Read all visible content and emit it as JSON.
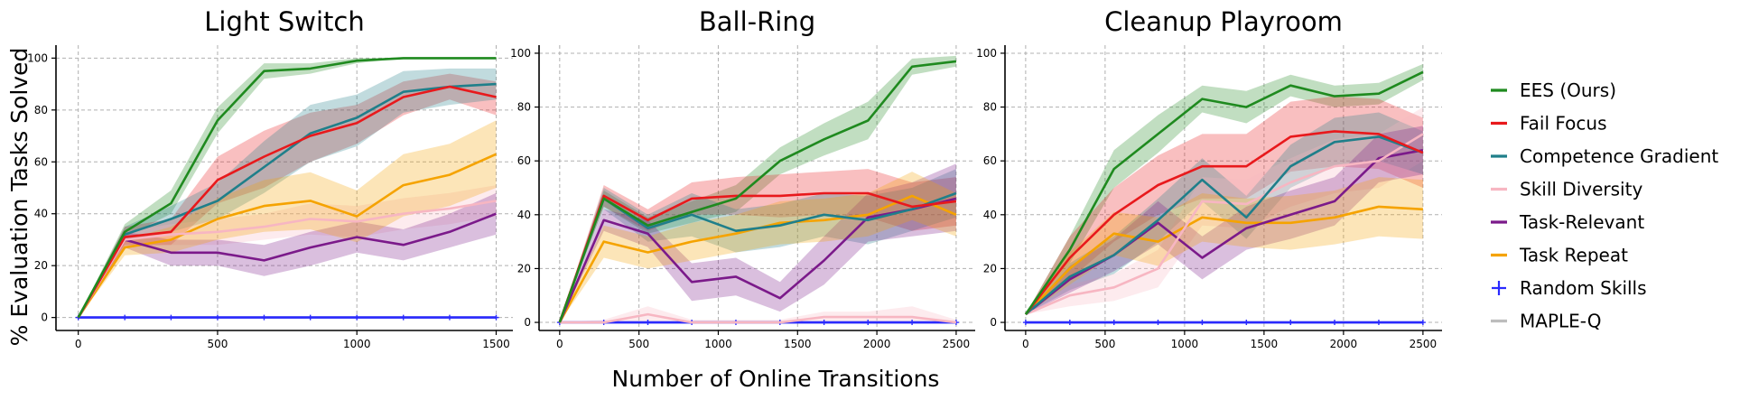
{
  "figure": {
    "ylabel": "% Evaluation Tasks Solved",
    "xlabel": "Number of Online Transitions"
  },
  "legend": [
    {
      "name": "EES (Ours)",
      "color": "#1f8a1f",
      "marker": "line"
    },
    {
      "name": "Fail Focus",
      "color": "#e8191c",
      "marker": "line"
    },
    {
      "name": "Competence Gradient",
      "color": "#1f7f8a",
      "marker": "line"
    },
    {
      "name": "Skill Diversity",
      "color": "#f7b6c2",
      "marker": "line"
    },
    {
      "name": "Task-Relevant",
      "color": "#7b1a8a",
      "marker": "line"
    },
    {
      "name": "Task Repeat",
      "color": "#f5a300",
      "marker": "line"
    },
    {
      "name": "Random Skills",
      "color": "#2a2aff",
      "marker": "plus"
    },
    {
      "name": "MAPLE-Q",
      "color": "#bdbdbd",
      "marker": "line"
    }
  ],
  "chart_data": [
    {
      "type": "line",
      "title": "Light Switch",
      "xlim": [
        -80,
        1560
      ],
      "ylim": [
        -5,
        105
      ],
      "xticks": [
        0,
        500,
        1000,
        1500
      ],
      "yticks": [
        0,
        20,
        40,
        60,
        80,
        100
      ],
      "grid": true,
      "series": [
        {
          "name": "EES (Ours)",
          "x": [
            0,
            167,
            333,
            500,
            667,
            833,
            1000,
            1167,
            1333,
            1500
          ],
          "y": [
            0,
            33,
            44,
            76,
            95,
            96,
            99,
            100,
            100,
            100
          ],
          "lo": [
            0,
            31,
            40,
            71,
            92,
            94,
            98,
            100,
            100,
            100
          ],
          "hi": [
            0,
            36,
            49,
            81,
            98,
            98,
            100,
            100,
            100,
            100
          ]
        },
        {
          "name": "Fail Focus",
          "x": [
            0,
            167,
            333,
            500,
            667,
            833,
            1000,
            1167,
            1333,
            1500
          ],
          "y": [
            0,
            31,
            33,
            53,
            62,
            70,
            75,
            85,
            89,
            85
          ],
          "lo": [
            0,
            28,
            28,
            44,
            50,
            60,
            67,
            78,
            84,
            78
          ],
          "hi": [
            0,
            35,
            38,
            62,
            72,
            79,
            82,
            91,
            94,
            91
          ]
        },
        {
          "name": "Competence Gradient",
          "x": [
            0,
            167,
            333,
            500,
            667,
            833,
            1000,
            1167,
            1333,
            1500
          ],
          "y": [
            0,
            32,
            38,
            45,
            58,
            71,
            77,
            87,
            89,
            90
          ],
          "lo": [
            0,
            29,
            33,
            38,
            48,
            60,
            66,
            79,
            82,
            84
          ],
          "hi": [
            0,
            35,
            43,
            52,
            68,
            82,
            86,
            95,
            96,
            96
          ]
        },
        {
          "name": "Skill Diversity",
          "x": [
            0,
            167,
            333,
            500,
            667,
            833,
            1000,
            1167,
            1333,
            1500
          ],
          "y": [
            0,
            30,
            32,
            33,
            35,
            38,
            37,
            40,
            42,
            45
          ],
          "lo": [
            0,
            27,
            28,
            28,
            30,
            32,
            31,
            34,
            36,
            39
          ],
          "hi": [
            0,
            33,
            36,
            38,
            40,
            44,
            43,
            46,
            48,
            51
          ]
        },
        {
          "name": "Task-Relevant",
          "x": [
            0,
            167,
            333,
            500,
            667,
            833,
            1000,
            1167,
            1333,
            1500
          ],
          "y": [
            0,
            30,
            25,
            25,
            22,
            27,
            31,
            28,
            33,
            40
          ],
          "lo": [
            0,
            27,
            20,
            20,
            16,
            20,
            25,
            22,
            27,
            32
          ],
          "hi": [
            0,
            33,
            30,
            30,
            28,
            33,
            37,
            34,
            40,
            48
          ]
        },
        {
          "name": "Task Repeat",
          "x": [
            0,
            167,
            333,
            500,
            667,
            833,
            1000,
            1167,
            1333,
            1500
          ],
          "y": [
            0,
            27,
            30,
            38,
            43,
            45,
            39,
            51,
            55,
            63
          ],
          "lo": [
            0,
            24,
            25,
            30,
            33,
            34,
            29,
            39,
            43,
            50
          ],
          "hi": [
            0,
            30,
            35,
            46,
            53,
            56,
            49,
            63,
            67,
            76
          ]
        },
        {
          "name": "Random Skills",
          "x": [
            0,
            167,
            333,
            500,
            667,
            833,
            1000,
            1167,
            1333,
            1500
          ],
          "y": [
            0,
            0,
            0,
            0,
            0,
            0,
            0,
            0,
            0,
            0
          ]
        },
        {
          "name": "MAPLE-Q",
          "x": [
            0,
            167,
            333,
            500,
            667,
            833,
            1000,
            1167,
            1333,
            1500
          ],
          "y": [
            0,
            0,
            0,
            0,
            0,
            0,
            0,
            0,
            0,
            0
          ]
        }
      ]
    },
    {
      "type": "line",
      "title": "Ball-Ring",
      "xlim": [
        -130,
        2620
      ],
      "ylim": [
        -3,
        103
      ],
      "xticks": [
        0,
        500,
        1000,
        1500,
        2000,
        2500
      ],
      "yticks": [
        0,
        20,
        40,
        60,
        80,
        100
      ],
      "grid": true,
      "series": [
        {
          "name": "EES (Ours)",
          "x": [
            0,
            278,
            556,
            833,
            1111,
            1389,
            1667,
            1944,
            2222,
            2500
          ],
          "y": [
            0,
            46,
            36,
            41,
            46,
            60,
            68,
            75,
            95,
            97
          ],
          "lo": [
            0,
            43,
            33,
            37,
            41,
            55,
            62,
            68,
            92,
            95
          ],
          "hi": [
            0,
            49,
            39,
            45,
            51,
            65,
            74,
            82,
            98,
            99
          ]
        },
        {
          "name": "Fail Focus",
          "x": [
            0,
            278,
            556,
            833,
            1111,
            1389,
            1667,
            1944,
            2222,
            2500
          ],
          "y": [
            0,
            47,
            38,
            46,
            47,
            47,
            48,
            48,
            43,
            45
          ],
          "lo": [
            0,
            43,
            34,
            40,
            40,
            39,
            40,
            39,
            34,
            36
          ],
          "hi": [
            0,
            51,
            42,
            52,
            54,
            55,
            56,
            57,
            52,
            54
          ]
        },
        {
          "name": "Competence Gradient",
          "x": [
            0,
            278,
            556,
            833,
            1111,
            1389,
            1667,
            1944,
            2222,
            2500
          ],
          "y": [
            0,
            46,
            35,
            40,
            34,
            36,
            40,
            38,
            42,
            48
          ],
          "lo": [
            0,
            42,
            30,
            32,
            26,
            28,
            32,
            29,
            34,
            39
          ],
          "hi": [
            0,
            50,
            40,
            48,
            42,
            44,
            48,
            47,
            50,
            57
          ]
        },
        {
          "name": "Skill Diversity",
          "x": [
            0,
            278,
            556,
            833,
            1111,
            1389,
            1667,
            1944,
            2222,
            2500
          ],
          "y": [
            0,
            0,
            3,
            0,
            0,
            0,
            2,
            2,
            2,
            0
          ],
          "lo": [
            0,
            0,
            0,
            0,
            0,
            0,
            0,
            0,
            0,
            0
          ],
          "hi": [
            0,
            1,
            6,
            1,
            1,
            1,
            4,
            4,
            6,
            1
          ]
        },
        {
          "name": "Task-Relevant",
          "x": [
            0,
            278,
            556,
            833,
            1111,
            1389,
            1667,
            1944,
            2222,
            2500
          ],
          "y": [
            0,
            38,
            33,
            15,
            17,
            9,
            23,
            39,
            42,
            46
          ],
          "lo": [
            0,
            34,
            28,
            8,
            10,
            4,
            14,
            30,
            32,
            34
          ],
          "hi": [
            0,
            42,
            38,
            22,
            24,
            15,
            32,
            48,
            52,
            59
          ]
        },
        {
          "name": "Task Repeat",
          "x": [
            0,
            278,
            556,
            833,
            1111,
            1389,
            1667,
            1944,
            2222,
            2500
          ],
          "y": [
            0,
            30,
            26,
            30,
            33,
            37,
            38,
            40,
            47,
            40
          ],
          "lo": [
            0,
            24,
            20,
            23,
            26,
            29,
            30,
            32,
            38,
            32
          ],
          "hi": [
            0,
            36,
            32,
            37,
            40,
            45,
            46,
            48,
            56,
            48
          ]
        },
        {
          "name": "Random Skills",
          "x": [
            0,
            278,
            556,
            833,
            1111,
            1389,
            1667,
            1944,
            2222,
            2500
          ],
          "y": [
            0,
            0,
            0,
            0,
            0,
            0,
            0,
            0,
            0,
            0
          ]
        },
        {
          "name": "MAPLE-Q",
          "x": [
            0,
            278,
            556,
            833,
            1111,
            1389,
            1667,
            1944,
            2222,
            2500
          ],
          "y": [
            0,
            0,
            0,
            0,
            0,
            0,
            0,
            0,
            0,
            0
          ]
        }
      ]
    },
    {
      "type": "line",
      "title": "Cleanup Playroom",
      "xlim": [
        -130,
        2620
      ],
      "ylim": [
        -3,
        103
      ],
      "xticks": [
        0,
        500,
        1000,
        1500,
        2000,
        2500
      ],
      "yticks": [
        0,
        20,
        40,
        60,
        80,
        100
      ],
      "grid": true,
      "series": [
        {
          "name": "EES (Ours)",
          "x": [
            0,
            278,
            556,
            833,
            1111,
            1389,
            1667,
            1944,
            2222,
            2500
          ],
          "y": [
            3,
            27,
            57,
            70,
            83,
            80,
            88,
            84,
            85,
            93
          ],
          "lo": [
            3,
            22,
            50,
            63,
            78,
            74,
            84,
            80,
            81,
            90
          ],
          "hi": [
            3,
            32,
            64,
            77,
            88,
            86,
            92,
            88,
            89,
            96
          ]
        },
        {
          "name": "Fail Focus",
          "x": [
            0,
            278,
            556,
            833,
            1111,
            1389,
            1667,
            1944,
            2222,
            2500
          ],
          "y": [
            3,
            24,
            40,
            51,
            58,
            58,
            69,
            71,
            70,
            63
          ],
          "lo": [
            3,
            16,
            30,
            40,
            46,
            46,
            56,
            58,
            57,
            50
          ],
          "hi": [
            3,
            32,
            50,
            62,
            70,
            70,
            82,
            84,
            83,
            76
          ]
        },
        {
          "name": "Competence Gradient",
          "x": [
            0,
            278,
            556,
            833,
            1111,
            1389,
            1667,
            1944,
            2222,
            2500
          ],
          "y": [
            3,
            17,
            25,
            38,
            53,
            39,
            58,
            67,
            69,
            63
          ],
          "lo": [
            3,
            12,
            18,
            30,
            45,
            31,
            50,
            58,
            60,
            55
          ],
          "hi": [
            3,
            22,
            32,
            46,
            61,
            47,
            66,
            76,
            78,
            71
          ]
        },
        {
          "name": "Skill Diversity",
          "x": [
            0,
            278,
            556,
            833,
            1111,
            1389,
            1667,
            1944,
            2222,
            2500
          ],
          "y": [
            3,
            10,
            13,
            20,
            45,
            44,
            52,
            58,
            60,
            70
          ],
          "lo": [
            3,
            6,
            8,
            13,
            36,
            35,
            43,
            48,
            50,
            60
          ],
          "hi": [
            3,
            14,
            18,
            27,
            54,
            53,
            61,
            68,
            70,
            80
          ]
        },
        {
          "name": "Task-Relevant",
          "x": [
            0,
            278,
            556,
            833,
            1111,
            1389,
            1667,
            1944,
            2222,
            2500
          ],
          "y": [
            3,
            16,
            25,
            37,
            24,
            35,
            40,
            45,
            61,
            64
          ],
          "lo": [
            3,
            11,
            19,
            29,
            16,
            27,
            31,
            36,
            52,
            55
          ],
          "hi": [
            3,
            21,
            31,
            45,
            32,
            43,
            49,
            54,
            70,
            73
          ]
        },
        {
          "name": "Task Repeat",
          "x": [
            0,
            278,
            556,
            833,
            1111,
            1389,
            1667,
            1944,
            2222,
            2500
          ],
          "y": [
            3,
            20,
            33,
            30,
            39,
            37,
            37,
            39,
            43,
            42
          ],
          "lo": [
            3,
            14,
            25,
            21,
            30,
            28,
            27,
            29,
            32,
            31
          ],
          "hi": [
            3,
            26,
            41,
            39,
            48,
            46,
            47,
            49,
            54,
            53
          ]
        },
        {
          "name": "Random Skills",
          "x": [
            0,
            278,
            556,
            833,
            1111,
            1389,
            1667,
            1944,
            2222,
            2500
          ],
          "y": [
            0,
            0,
            0,
            0,
            0,
            0,
            0,
            0,
            0,
            0
          ]
        },
        {
          "name": "MAPLE-Q",
          "x": [
            0,
            278,
            556,
            833,
            1111,
            1389,
            1667,
            1944,
            2222,
            2500
          ],
          "y": [
            0,
            0,
            0,
            0,
            0,
            0,
            0,
            0,
            0,
            0
          ]
        }
      ]
    }
  ]
}
